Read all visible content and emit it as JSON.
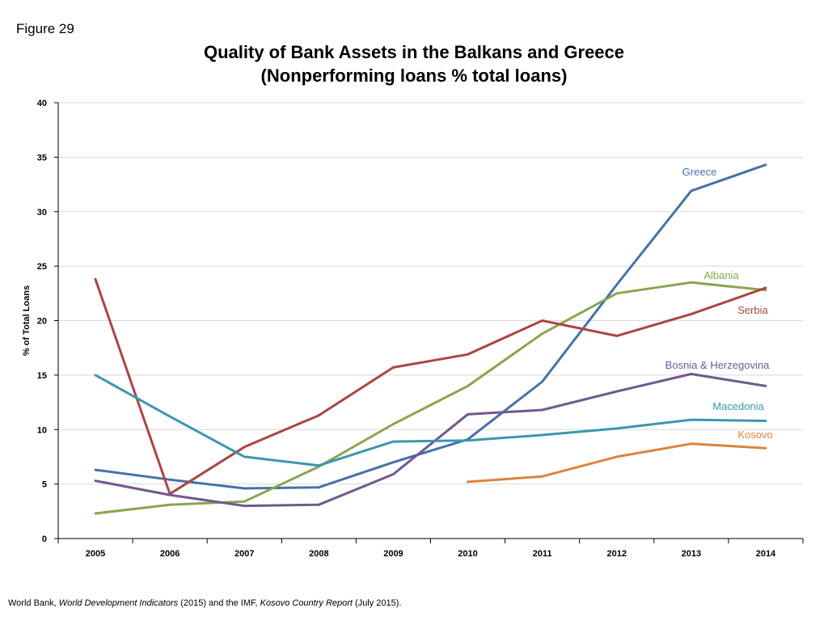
{
  "figure_label": "Figure 29",
  "source": {
    "prefix": "World Bank, ",
    "work1": "World Development Indicators",
    "middle": " (2015) and the IMF, ",
    "work2": "Kosovo Country Report",
    "suffix": " (July 2015)."
  },
  "chart_data": {
    "type": "line",
    "title": "Quality of Bank Assets in the Balkans and Greece",
    "subtitle": "(Nonperforming loans % total loans)",
    "xlabel": "",
    "ylabel": "% of Total Loans",
    "x": [
      2005,
      2006,
      2007,
      2008,
      2009,
      2010,
      2011,
      2012,
      2013,
      2014
    ],
    "ylim": [
      0,
      40
    ],
    "yticks": [
      0,
      5,
      10,
      15,
      20,
      25,
      30,
      35,
      40
    ],
    "grid": true,
    "series": [
      {
        "name": "Greece",
        "color": "#4572A7",
        "values": [
          6.3,
          5.4,
          4.6,
          4.7,
          7.0,
          9.1,
          14.4,
          23.3,
          31.9,
          34.3
        ]
      },
      {
        "name": "Albania",
        "color": "#89A54E",
        "values": [
          2.3,
          3.1,
          3.4,
          6.6,
          10.5,
          14.0,
          18.8,
          22.5,
          23.5,
          22.8
        ]
      },
      {
        "name": "Serbia",
        "color": "#AA4643",
        "values": [
          23.8,
          4.1,
          8.4,
          11.3,
          15.7,
          16.9,
          20.0,
          18.6,
          20.6,
          23.0
        ]
      },
      {
        "name": "Bosnia & Herzegovina",
        "color": "#71588F",
        "values": [
          5.3,
          4.0,
          3.0,
          3.1,
          5.9,
          11.4,
          11.8,
          13.5,
          15.1,
          14.0
        ]
      },
      {
        "name": "Macedonia",
        "color": "#3D96AE",
        "values": [
          15.0,
          11.2,
          7.5,
          6.7,
          8.9,
          9.0,
          9.5,
          10.1,
          10.9,
          10.8
        ]
      },
      {
        "name": "Kosovo",
        "color": "#DB843D",
        "values": [
          null,
          null,
          null,
          null,
          null,
          5.2,
          5.7,
          7.5,
          8.7,
          8.3
        ]
      }
    ]
  }
}
